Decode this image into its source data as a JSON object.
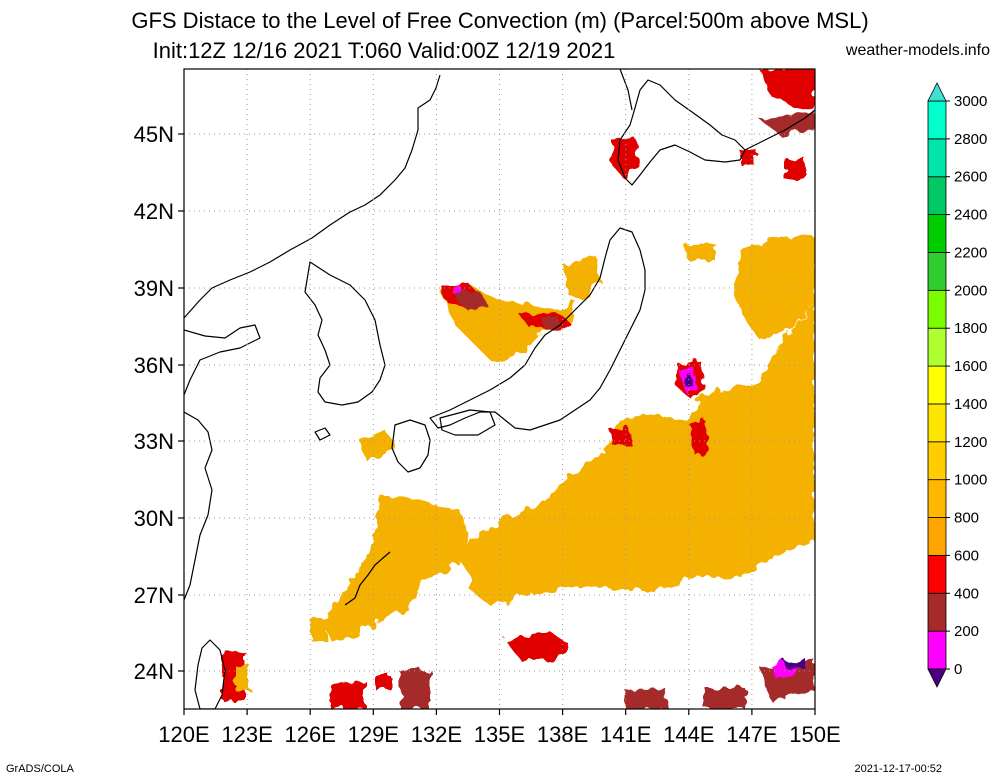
{
  "title_line1": "GFS Distace to the Level of Free Convection (m) (Parcel:500m above MSL)",
  "title_line2": "Init:12Z 12/16 2021 T:060 Valid:00Z 12/19 2021",
  "site": "weather-models.info",
  "footer_left": "GrADS/COLA",
  "footer_right": "2021-12-17-00:52",
  "lat_labels": [
    "45N",
    "42N",
    "39N",
    "36N",
    "33N",
    "30N",
    "27N",
    "24N"
  ],
  "lon_labels": [
    "120E",
    "123E",
    "126E",
    "129E",
    "132E",
    "135E",
    "138E",
    "141E",
    "144E",
    "147E",
    "150E"
  ],
  "colorbar": {
    "labels": [
      "0",
      "200",
      "400",
      "600",
      "800",
      "1000",
      "1200",
      "1400",
      "1600",
      "1800",
      "2000",
      "2200",
      "2400",
      "2600",
      "2800",
      "3000"
    ],
    "colors": [
      "#4b0082",
      "#ff00ff",
      "#a52a2a",
      "#ff0000",
      "#ffa500",
      "#ffb700",
      "#ffcd00",
      "#ffe600",
      "#ffff00",
      "#adff2f",
      "#7cfc00",
      "#32cd32",
      "#00cd00",
      "#00c864",
      "#00e6aa",
      "#00ffcc",
      "#40e0d0"
    ]
  }
}
